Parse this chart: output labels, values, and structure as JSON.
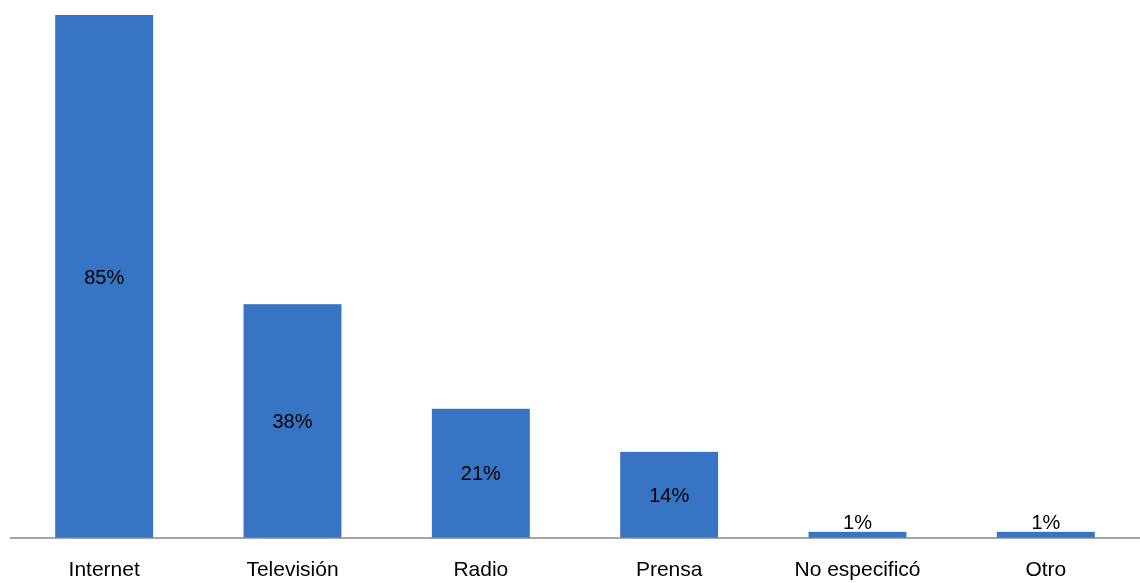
{
  "chart_data": {
    "type": "bar",
    "categories": [
      "Internet",
      "Televisión",
      "Radio",
      "Prensa",
      "No especificó",
      "Otro"
    ],
    "values": [
      85,
      38,
      21,
      14,
      1,
      1
    ],
    "value_labels": [
      "85%",
      "38%",
      "21%",
      "14%",
      "1%",
      "1%"
    ],
    "color": "#3874c4"
  }
}
